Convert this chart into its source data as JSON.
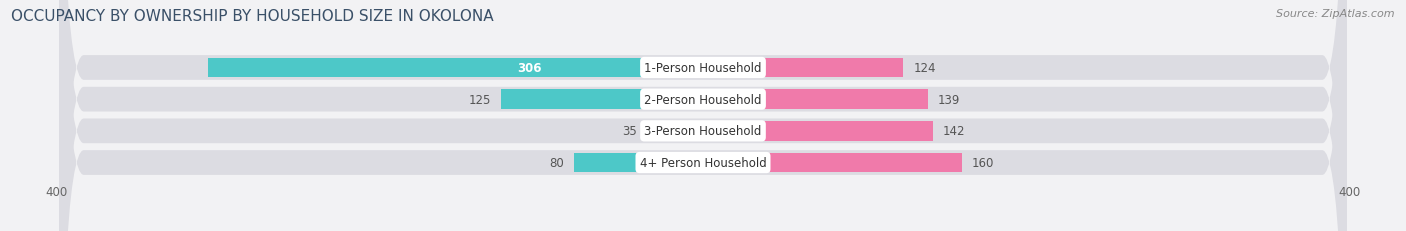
{
  "title": "OCCUPANCY BY OWNERSHIP BY HOUSEHOLD SIZE IN OKOLONA",
  "source": "Source: ZipAtlas.com",
  "categories": [
    "1-Person Household",
    "2-Person Household",
    "3-Person Household",
    "4+ Person Household"
  ],
  "owner_values": [
    306,
    125,
    35,
    80
  ],
  "renter_values": [
    124,
    139,
    142,
    160
  ],
  "owner_color": "#4dc8c8",
  "renter_color": "#f07aaa",
  "axis_max": 400,
  "axis_min": -400,
  "row_bg_color": "#e8e8ec",
  "row_alt_bg_color": "#e0e0e6",
  "background_color": "#f2f2f4",
  "title_color": "#3a5068",
  "source_color": "#888888",
  "value_color_dark": "#555555",
  "value_color_white": "#ffffff",
  "title_fontsize": 11,
  "label_fontsize": 8.5,
  "tick_fontsize": 8.5,
  "source_fontsize": 8
}
